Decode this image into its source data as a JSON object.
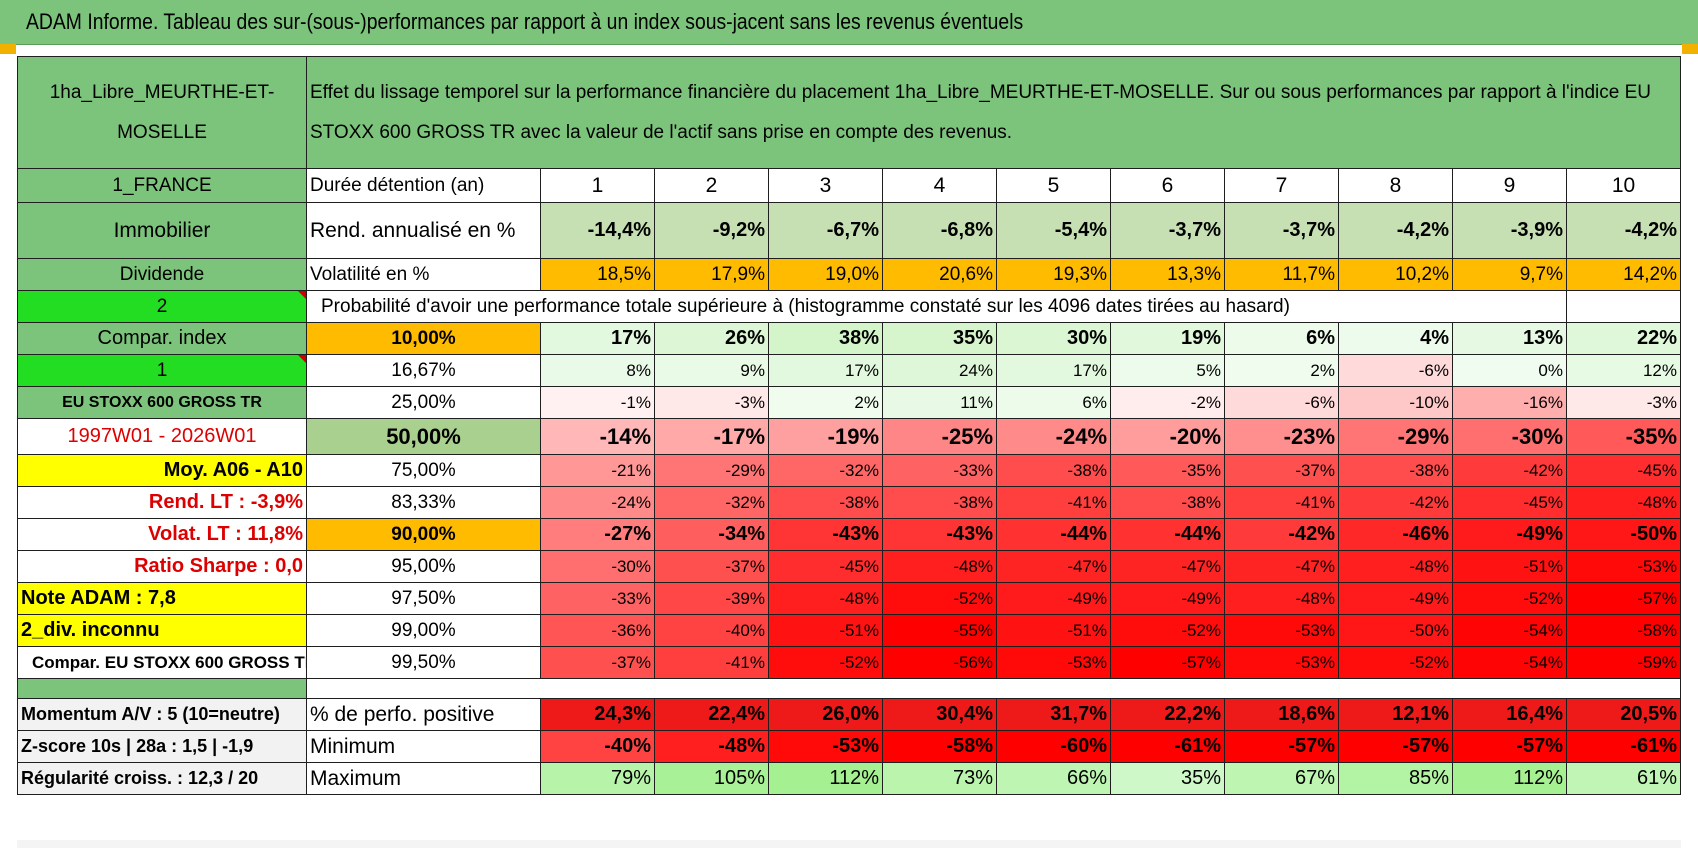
{
  "title": "ADAM Informe. Tableau des sur-(sous-)performances par rapport à un index sous-jacent sans les revenus éventuels",
  "header": {
    "asset": "1ha_Libre_MEURTHE-ET-MOSELLE",
    "description": "Effet du lissage temporel sur la performance financière du placement 1ha_Libre_MEURTHE-ET-MOSELLE. Sur ou sous performances par rapport à l'indice EU STOXX 600 GROSS TR avec la valeur de l'actif sans prise en compte des revenus."
  },
  "left": {
    "country": "1_FRANCE",
    "category": "Immobilier",
    "type": "Dividende",
    "num2": "2",
    "compar": "Compar. index",
    "num1": "1",
    "index_name": "EU STOXX 600 GROSS TR",
    "period": "1997W01 - 2026W01",
    "moy": "Moy. A06 - A10",
    "rend_lt": "Rend. LT :    -3,9%",
    "volat_lt": "Volat. LT :    11,8%",
    "sharpe": "Ratio Sharpe :     0,0",
    "note": "Note ADAM : 7,8",
    "div": "2_div. inconnu",
    "compar_full": "Compar. EU STOXX 600 GROSS TR"
  },
  "stats": {
    "years_label": "Durée détention (an)",
    "years": [
      "1",
      "2",
      "3",
      "4",
      "5",
      "6",
      "7",
      "8",
      "9",
      "10"
    ],
    "rend_label": "Rend. annualisé en %",
    "rend": [
      "-14,4%",
      "-9,2%",
      "-6,7%",
      "-6,8%",
      "-5,4%",
      "-3,7%",
      "-3,7%",
      "-4,2%",
      "-3,9%",
      "-4,2%"
    ],
    "vol_label": "Volatilité en %",
    "vol": [
      "18,5%",
      "17,9%",
      "19,0%",
      "20,6%",
      "19,3%",
      "13,3%",
      "11,7%",
      "10,2%",
      "9,7%",
      "14,2%"
    ],
    "prob_text": "Probabilité d'avoir une performance totale supérieure à (histogramme constaté sur les 4096 dates tirées au hasard)"
  },
  "quantiles": [
    {
      "p": "10,00%",
      "v": [
        "17%",
        "26%",
        "38%",
        "35%",
        "30%",
        "19%",
        "6%",
        "4%",
        "13%",
        "22%"
      ]
    },
    {
      "p": "16,67%",
      "v": [
        "8%",
        "9%",
        "17%",
        "24%",
        "17%",
        "5%",
        "2%",
        "-6%",
        "0%",
        "12%"
      ]
    },
    {
      "p": "25,00%",
      "v": [
        "-1%",
        "-3%",
        "2%",
        "11%",
        "6%",
        "-2%",
        "-6%",
        "-10%",
        "-16%",
        "-3%"
      ]
    },
    {
      "p": "50,00%",
      "v": [
        "-14%",
        "-17%",
        "-19%",
        "-25%",
        "-24%",
        "-20%",
        "-23%",
        "-29%",
        "-30%",
        "-35%"
      ]
    },
    {
      "p": "75,00%",
      "v": [
        "-21%",
        "-29%",
        "-32%",
        "-33%",
        "-38%",
        "-35%",
        "-37%",
        "-38%",
        "-42%",
        "-45%"
      ]
    },
    {
      "p": "83,33%",
      "v": [
        "-24%",
        "-32%",
        "-38%",
        "-38%",
        "-41%",
        "-38%",
        "-41%",
        "-42%",
        "-45%",
        "-48%"
      ]
    },
    {
      "p": "90,00%",
      "v": [
        "-27%",
        "-34%",
        "-43%",
        "-43%",
        "-44%",
        "-44%",
        "-42%",
        "-46%",
        "-49%",
        "-50%"
      ]
    },
    {
      "p": "95,00%",
      "v": [
        "-30%",
        "-37%",
        "-45%",
        "-48%",
        "-47%",
        "-47%",
        "-47%",
        "-48%",
        "-51%",
        "-53%"
      ]
    },
    {
      "p": "97,50%",
      "v": [
        "-33%",
        "-39%",
        "-48%",
        "-52%",
        "-49%",
        "-49%",
        "-48%",
        "-49%",
        "-52%",
        "-57%"
      ]
    },
    {
      "p": "99,00%",
      "v": [
        "-36%",
        "-40%",
        "-51%",
        "-55%",
        "-51%",
        "-52%",
        "-53%",
        "-50%",
        "-54%",
        "-58%"
      ]
    },
    {
      "p": "99,50%",
      "v": [
        "-37%",
        "-41%",
        "-52%",
        "-56%",
        "-53%",
        "-57%",
        "-53%",
        "-52%",
        "-54%",
        "-59%"
      ]
    }
  ],
  "bottom": {
    "momentum": "Momentum A/V : 5 (10=neutre)",
    "zscore": "Z-score 10s | 28a : 1,5 | -1,9",
    "regul": "Régularité croiss. : 12,3 / 20",
    "pos_label": "% de perfo. positive",
    "pos": [
      "24,3%",
      "22,4%",
      "26,0%",
      "30,4%",
      "31,7%",
      "22,2%",
      "18,6%",
      "12,1%",
      "16,4%",
      "20,5%"
    ],
    "min_label": "Minimum",
    "min": [
      "-40%",
      "-48%",
      "-53%",
      "-58%",
      "-60%",
      "-61%",
      "-57%",
      "-57%",
      "-57%",
      "-61%"
    ],
    "max_label": "Maximum",
    "max": [
      "79%",
      "105%",
      "112%",
      "73%",
      "66%",
      "35%",
      "67%",
      "85%",
      "112%",
      "61%"
    ]
  }
}
